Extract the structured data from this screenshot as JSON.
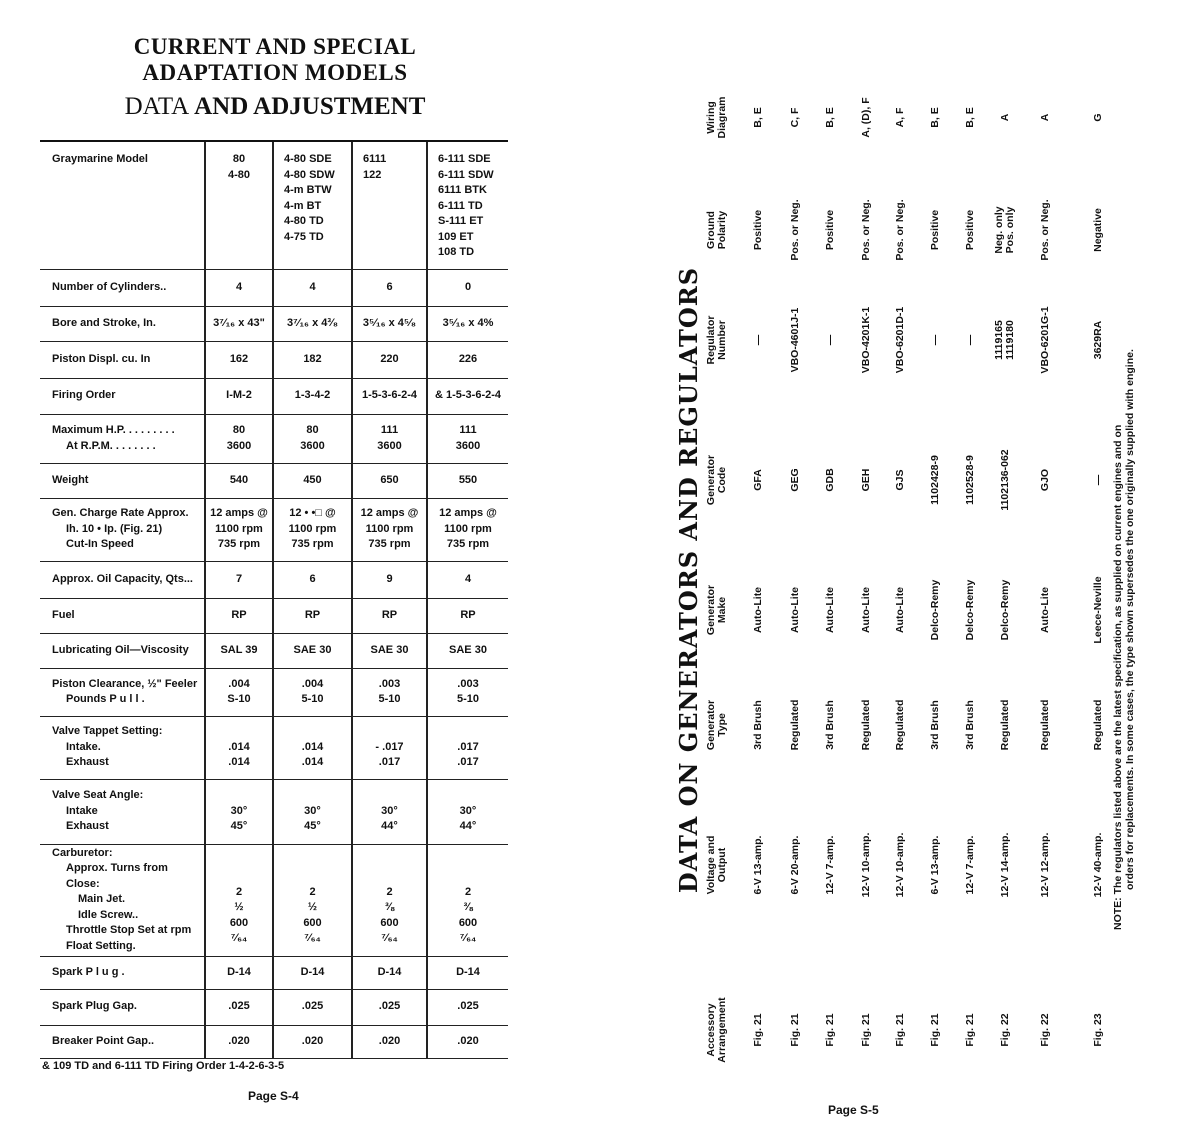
{
  "left_page": {
    "title_line1": "CURRENT AND SPECIAL",
    "title_line2": "ADAPTATION MODELS",
    "title_line3_a": "DATA",
    "title_line3_b": "AND ADJUSTMENT",
    "rows": [
      {
        "label": [
          "Graymarine Model"
        ],
        "values": [
          [
            "80",
            "4-80"
          ],
          [
            "4-80 SDE",
            "4-80 SDW",
            "4-m BTW",
            "4-m BT",
            "4-80 TD",
            "4-75 TD"
          ],
          [
            "6111",
            "122"
          ],
          [
            "6-111 SDE",
            "6-111 SDW",
            "6111 BTK",
            "6-111 TD",
            "S-111 ET",
            "109 ET",
            "108 TD"
          ]
        ]
      },
      {
        "label": [
          "Number of Cylinders.."
        ],
        "values": [
          [
            "4"
          ],
          [
            "4"
          ],
          [
            "6"
          ],
          [
            "0"
          ]
        ]
      },
      {
        "label": [
          "Bore and Stroke, In."
        ],
        "values": [
          [
            "3⁷⁄₁₆ x 43\""
          ],
          [
            "3⁷⁄₁₆ x 4³⁄₈"
          ],
          [
            "3⁵⁄₁₆ x 4⁵⁄₈"
          ],
          [
            "3⁵⁄₁₆ x 4%"
          ]
        ]
      },
      {
        "label": [
          "Piston Displ. cu. In"
        ],
        "values": [
          [
            "162"
          ],
          [
            "182"
          ],
          [
            "220"
          ],
          [
            "226"
          ]
        ]
      },
      {
        "label": [
          "Firing Order"
        ],
        "values": [
          [
            "I-M-2"
          ],
          [
            "1-3-4-2"
          ],
          [
            "1-5-3-6-2-4"
          ],
          [
            "& 1-5-3-6-2-4"
          ]
        ]
      },
      {
        "label": [
          "Maximum H.P. . . . . . . . .",
          "At R.P.M. . . . . . . ."
        ],
        "values": [
          [
            "80",
            "3600"
          ],
          [
            "80",
            "3600"
          ],
          [
            "111",
            "3600"
          ],
          [
            "111",
            "3600"
          ]
        ]
      },
      {
        "label": [
          "Weight"
        ],
        "values": [
          [
            "540"
          ],
          [
            "450"
          ],
          [
            "650"
          ],
          [
            "550"
          ]
        ]
      },
      {
        "label": [
          "Gen. Charge Rate Approx.",
          "Ih. 10 • Ip. (Fig. 21)",
          "Cut-In Speed"
        ],
        "values": [
          [
            "12 amps @",
            "1100 rpm",
            "735 rpm"
          ],
          [
            "12 • •□ @",
            "1100 rpm",
            "735 rpm"
          ],
          [
            "12 amps @",
            "1100 rpm",
            "735 rpm"
          ],
          [
            "12 amps @",
            "1100 rpm",
            "735 rpm"
          ]
        ]
      },
      {
        "label": [
          "Approx. Oil Capacity, Qts..."
        ],
        "values": [
          [
            "7"
          ],
          [
            "6"
          ],
          [
            "9"
          ],
          [
            "4"
          ]
        ]
      },
      {
        "label": [
          "Fuel"
        ],
        "values": [
          [
            "RP"
          ],
          [
            "RP"
          ],
          [
            "RP"
          ],
          [
            "RP"
          ]
        ]
      },
      {
        "label": [
          "Lubricating Oil—Viscosity"
        ],
        "values": [
          [
            "SAL 39"
          ],
          [
            "SAE 30"
          ],
          [
            "SAE 30"
          ],
          [
            "SAE 30"
          ]
        ]
      },
      {
        "label": [
          "Piston Clearance, ½\" Feeler",
          "Pounds P u l l ."
        ],
        "values": [
          [
            ".004",
            "S-10"
          ],
          [
            ".004",
            "5-10"
          ],
          [
            ".003",
            "5-10"
          ],
          [
            ".003",
            "5-10"
          ]
        ]
      },
      {
        "label": [
          "Valve Tappet Setting:",
          "Intake.",
          "Exhaust"
        ],
        "values": [
          [
            "",
            ".014",
            ".014"
          ],
          [
            "",
            ".014",
            ".014"
          ],
          [
            "",
            "- .017",
            ".017"
          ],
          [
            "",
            ".017",
            ".017"
          ]
        ]
      },
      {
        "label": [
          "Valve Seat Angle:",
          "Intake",
          "Exhaust"
        ],
        "values": [
          [
            "",
            "30°",
            "45°"
          ],
          [
            "",
            "30°",
            "45°"
          ],
          [
            "",
            "30°",
            "44°"
          ],
          [
            "",
            "30°",
            "44°"
          ]
        ]
      },
      {
        "label": [
          "Carburetor:",
          "Approx. Turns from Close:",
          "Main Jet.",
          "Idle Screw..",
          "Throttle Stop Set at rpm",
          "Float Setting."
        ],
        "values": [
          [
            "",
            "",
            "2",
            "½",
            "600",
            "⁷⁄₆₄"
          ],
          [
            "",
            "",
            "2",
            "½",
            "600",
            "⁷⁄₆₄"
          ],
          [
            "",
            "",
            "2",
            "⅜",
            "600",
            "⁷⁄₆₄"
          ],
          [
            "",
            "",
            "2",
            "⅜",
            "600",
            "⁷⁄₆₄"
          ]
        ]
      },
      {
        "label": [
          "Spark P l u g ."
        ],
        "values": [
          [
            "D-14"
          ],
          [
            "D-14"
          ],
          [
            "D-14"
          ],
          [
            "D-14"
          ]
        ]
      },
      {
        "label": [
          "Spark Plug Gap."
        ],
        "values": [
          [
            ".025"
          ],
          [
            ".025"
          ],
          [
            ".025"
          ],
          [
            ".025"
          ]
        ]
      },
      {
        "label": [
          "Breaker Point Gap.."
        ],
        "values": [
          [
            ".020"
          ],
          [
            ".020"
          ],
          [
            ".020"
          ],
          [
            ".020"
          ]
        ]
      }
    ],
    "footnote": "& 109 TD and 6-111 TD Firing Order 1-4-2-6-3-5",
    "page": "Page S-4"
  },
  "right_page": {
    "title": "DATA ON GENERATORS AND REGULATORS",
    "headers": [
      [
        "Accessory",
        "Arrangement"
      ],
      [
        "Voltage and",
        "Output"
      ],
      [
        "Generator",
        "Type"
      ],
      [
        "Generator",
        "Make"
      ],
      [
        "Generator",
        "Code"
      ],
      [
        "Regulator",
        "Number"
      ],
      [
        "Ground",
        "Polarity"
      ],
      [
        "Wiring",
        "Diagram"
      ]
    ],
    "rows": [
      [
        [
          "Fig. 21"
        ],
        [
          "6-V 13-amp."
        ],
        [
          "3rd Brush"
        ],
        [
          "Auto-Lite"
        ],
        [
          "GFA"
        ],
        [
          "—"
        ],
        [
          "Positive"
        ],
        [
          "B, E"
        ]
      ],
      [
        [
          "Fig. 21"
        ],
        [
          "6-V 20-amp."
        ],
        [
          "Regulated"
        ],
        [
          "Auto-Lite"
        ],
        [
          "GEG"
        ],
        [
          "VBO-4601J-1"
        ],
        [
          "Pos. or Neg."
        ],
        [
          "C, F"
        ]
      ],
      [
        [
          "Fig. 21"
        ],
        [
          "12-V 7-amp."
        ],
        [
          "3rd Brush"
        ],
        [
          "Auto-Lite"
        ],
        [
          "GDB"
        ],
        [
          "—"
        ],
        [
          "Positive"
        ],
        [
          "B, E"
        ]
      ],
      [
        [
          "Fig. 21"
        ],
        [
          "12-V 10-amp."
        ],
        [
          "Regulated"
        ],
        [
          "Auto-Lite"
        ],
        [
          "GEH"
        ],
        [
          "VBO-4201K-1"
        ],
        [
          "Pos. or Neg."
        ],
        [
          "A, (D), F"
        ]
      ],
      [
        [
          "Fig. 21"
        ],
        [
          "12-V 10-amp."
        ],
        [
          "Regulated"
        ],
        [
          "Auto-Lite"
        ],
        [
          "GJS"
        ],
        [
          "VBO-6201D-1"
        ],
        [
          "Pos. or Neg."
        ],
        [
          "A, F"
        ]
      ],
      [
        [
          "Fig. 21"
        ],
        [
          "6-V 13-amp."
        ],
        [
          "3rd Brush"
        ],
        [
          "Delco-Remy"
        ],
        [
          "1102428-9"
        ],
        [
          "—"
        ],
        [
          "Positive"
        ],
        [
          "B, E"
        ]
      ],
      [
        [
          "Fig. 21"
        ],
        [
          "12-V 7-amp."
        ],
        [
          "3rd Brush"
        ],
        [
          "Delco-Remy"
        ],
        [
          "1102528-9"
        ],
        [
          "—"
        ],
        [
          "Positive"
        ],
        [
          "B, E"
        ]
      ],
      [
        [
          "Fig. 22"
        ],
        [
          "12-V 14-amp."
        ],
        [
          "Regulated"
        ],
        [
          "Delco-Remy"
        ],
        [
          "1102136-062"
        ],
        [
          "1119165",
          "1119180"
        ],
        [
          "Neg. only",
          "Pos. only"
        ],
        [
          "A"
        ]
      ],
      [
        [
          "Fig. 22"
        ],
        [
          "12-V 12-amp."
        ],
        [
          "Regulated"
        ],
        [
          "Auto-Lite"
        ],
        [
          "GJO"
        ],
        [
          "VBO-6201G-1"
        ],
        [
          "Pos. or Neg."
        ],
        [
          "A"
        ]
      ],
      [
        [
          "Fig. 23"
        ],
        [
          "12-V 40-amp."
        ],
        [
          "Regulated"
        ],
        [
          "Leece-Neville"
        ],
        [
          "—"
        ],
        [
          "3629RA"
        ],
        [
          "Negative"
        ],
        [
          "G"
        ]
      ]
    ],
    "note_line1": "NOTE: The regulators listed above are the latest specification, as supplied on current engines and on",
    "note_line2": "orders for replacements. In some cases, the type shown supersedes the one originally supplied with engine.",
    "page": "Page S-5"
  }
}
